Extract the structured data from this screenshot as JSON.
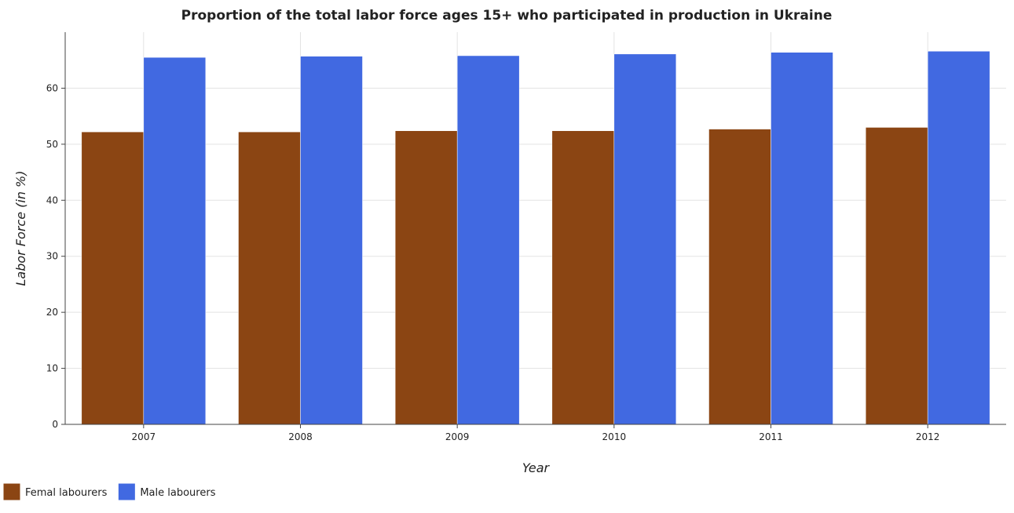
{
  "chart_data": {
    "type": "bar",
    "title": "Proportion of the total labor force ages 15+ who participated in production in Ukraine",
    "xlabel": "Year",
    "ylabel": "Labor Force (in %)",
    "categories": [
      "2007",
      "2008",
      "2009",
      "2010",
      "2011",
      "2012"
    ],
    "series": [
      {
        "name": "Femal labourers",
        "color": "#8b4513",
        "values": [
          52.2,
          52.2,
          52.4,
          52.4,
          52.7,
          53.0
        ]
      },
      {
        "name": "Male labourers",
        "color": "#4169e1",
        "values": [
          65.5,
          65.7,
          65.8,
          66.1,
          66.4,
          66.6
        ]
      }
    ],
    "ylim": [
      0,
      70
    ],
    "yticks": [
      0,
      10,
      20,
      30,
      40,
      50,
      60
    ],
    "grid": true,
    "legend_position": "bottom-left"
  }
}
